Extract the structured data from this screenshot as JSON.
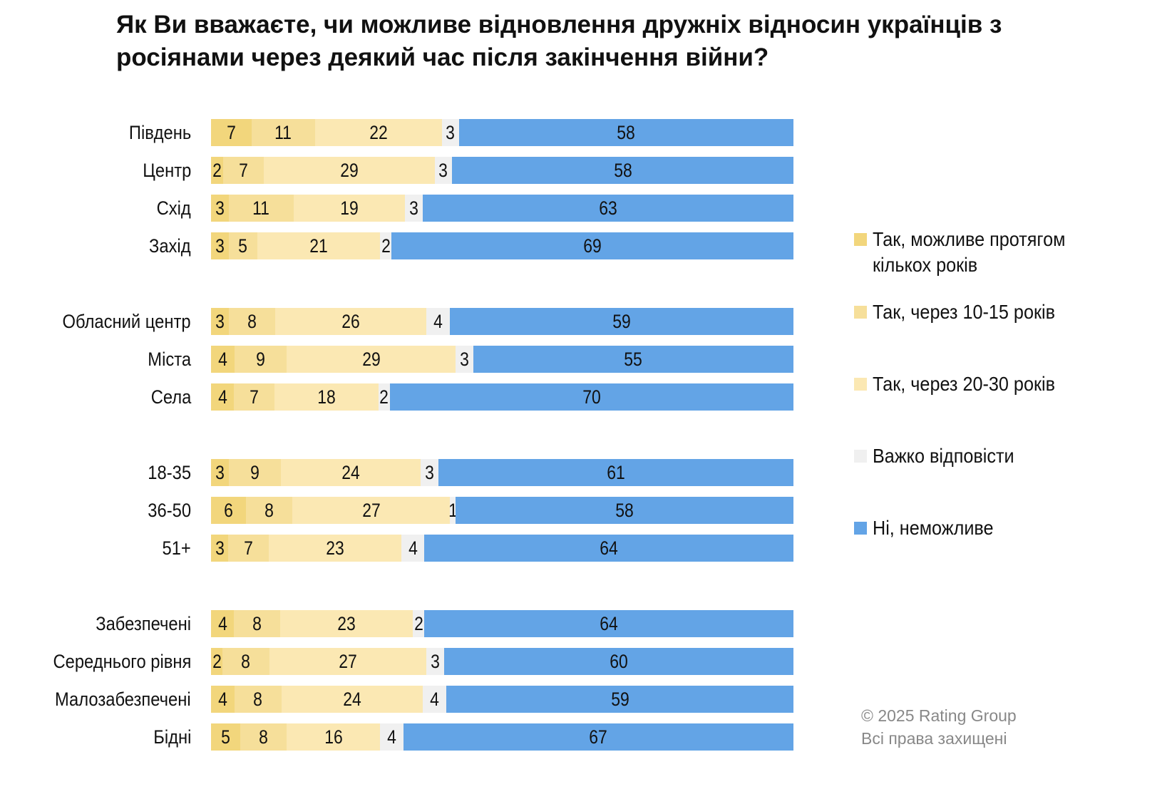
{
  "chart_data": {
    "type": "bar",
    "orientation": "horizontal",
    "stacked": true,
    "title": "Як Ви вважаєте, чи можливе відновлення дружніх відносин українців з росіянами через деякий час після закінчення війни?",
    "xlim": [
      0,
      100
    ],
    "legend_position": "right",
    "series": [
      {
        "name": "Так, можливе протягом кількох років",
        "color": "#f2d67c"
      },
      {
        "name": "Так, через 10-15 років",
        "color": "#f6df9a"
      },
      {
        "name": "Так, через 20-30 років",
        "color": "#fbe8b3"
      },
      {
        "name": "Важко відповісти",
        "color": "#f0f0f0"
      },
      {
        "name": "Ні, неможливе",
        "color": "#63a4e6"
      }
    ],
    "groups": [
      {
        "rows": [
          {
            "label": "Південь",
            "values": [
              7,
              11,
              22,
              3,
              58
            ]
          },
          {
            "label": "Центр",
            "values": [
              2,
              7,
              29,
              3,
              58
            ]
          },
          {
            "label": "Схід",
            "values": [
              3,
              11,
              19,
              3,
              63
            ]
          },
          {
            "label": "Захід",
            "values": [
              3,
              5,
              21,
              2,
              69
            ]
          }
        ]
      },
      {
        "rows": [
          {
            "label": "Обласний центр",
            "values": [
              3,
              8,
              26,
              4,
              59
            ]
          },
          {
            "label": "Міста",
            "values": [
              4,
              9,
              29,
              3,
              55
            ]
          },
          {
            "label": "Села",
            "values": [
              4,
              7,
              18,
              2,
              70
            ]
          }
        ]
      },
      {
        "rows": [
          {
            "label": "18-35",
            "values": [
              3,
              9,
              24,
              3,
              61
            ]
          },
          {
            "label": "36-50",
            "values": [
              6,
              8,
              27,
              1,
              58
            ]
          },
          {
            "label": "51+",
            "values": [
              3,
              7,
              23,
              4,
              64
            ]
          }
        ]
      },
      {
        "rows": [
          {
            "label": "Забезпечені",
            "values": [
              4,
              8,
              23,
              2,
              64
            ]
          },
          {
            "label": "Середнього рівня",
            "values": [
              2,
              8,
              27,
              3,
              60
            ]
          },
          {
            "label": "Малозабезпечені",
            "values": [
              4,
              8,
              24,
              4,
              59
            ]
          },
          {
            "label": "Бідні",
            "values": [
              5,
              8,
              16,
              4,
              67
            ]
          }
        ]
      }
    ]
  },
  "copyright": {
    "line1": "© 2025 Rating Group",
    "line2": "Всі права захищені"
  }
}
